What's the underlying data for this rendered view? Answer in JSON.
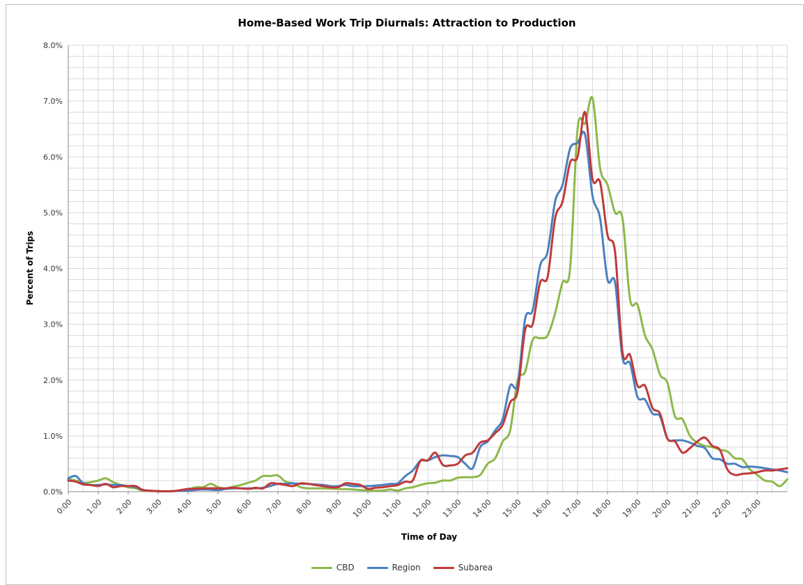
{
  "chart_data": {
    "type": "line",
    "title": "Home-Based Work Trip Diurnals: Attraction to Production",
    "xlabel": "Time of Day",
    "ylabel": "Percent of Trips",
    "ylim": [
      0,
      8
    ],
    "y_ticks": [
      "0.0%",
      "1.0%",
      "2.0%",
      "3.0%",
      "4.0%",
      "5.0%",
      "6.0%",
      "7.0%",
      "8.0%"
    ],
    "x_ticks": [
      "0:00",
      "1:00",
      "2:00",
      "3:00",
      "4:00",
      "5:00",
      "6:00",
      "7:00",
      "8:00",
      "9:00",
      "10:00",
      "11:00",
      "12:00",
      "13:00",
      "14:00",
      "15:00",
      "16:00",
      "17:00",
      "18:00",
      "19:00",
      "20:00",
      "21:00",
      "22:00",
      "23:00"
    ],
    "x_unit": "hours since 0:00",
    "xlim": [
      0,
      24
    ],
    "grid": true,
    "legend_position": "bottom",
    "series": [
      {
        "name": "CBD",
        "color": "#8db84a",
        "points": [
          [
            0,
            0.22
          ],
          [
            0.25,
            0.2
          ],
          [
            0.5,
            0.16
          ],
          [
            0.75,
            0.17
          ],
          [
            1.0,
            0.2
          ],
          [
            1.25,
            0.24
          ],
          [
            1.5,
            0.17
          ],
          [
            1.75,
            0.12
          ],
          [
            2.0,
            0.08
          ],
          [
            2.25,
            0.06
          ],
          [
            2.5,
            0.02
          ],
          [
            3.0,
            0.01
          ],
          [
            3.5,
            0.01
          ],
          [
            4.0,
            0.04
          ],
          [
            4.25,
            0.08
          ],
          [
            4.5,
            0.08
          ],
          [
            4.75,
            0.14
          ],
          [
            5.0,
            0.08
          ],
          [
            5.25,
            0.06
          ],
          [
            5.5,
            0.09
          ],
          [
            5.75,
            0.12
          ],
          [
            6.0,
            0.16
          ],
          [
            6.25,
            0.2
          ],
          [
            6.5,
            0.28
          ],
          [
            6.75,
            0.28
          ],
          [
            7.0,
            0.29
          ],
          [
            7.25,
            0.18
          ],
          [
            7.5,
            0.15
          ],
          [
            7.75,
            0.08
          ],
          [
            8.0,
            0.06
          ],
          [
            8.5,
            0.06
          ],
          [
            9.0,
            0.05
          ],
          [
            9.5,
            0.04
          ],
          [
            10.0,
            0.02
          ],
          [
            10.5,
            0.02
          ],
          [
            10.75,
            0.04
          ],
          [
            11.0,
            0.02
          ],
          [
            11.25,
            0.06
          ],
          [
            11.5,
            0.08
          ],
          [
            11.75,
            0.12
          ],
          [
            12.0,
            0.15
          ],
          [
            12.25,
            0.16
          ],
          [
            12.5,
            0.2
          ],
          [
            12.75,
            0.2
          ],
          [
            13.0,
            0.25
          ],
          [
            13.25,
            0.26
          ],
          [
            13.5,
            0.26
          ],
          [
            13.75,
            0.3
          ],
          [
            14.0,
            0.5
          ],
          [
            14.25,
            0.6
          ],
          [
            14.5,
            0.9
          ],
          [
            14.75,
            1.1
          ],
          [
            15.0,
            2.0
          ],
          [
            15.25,
            2.15
          ],
          [
            15.5,
            2.72
          ],
          [
            15.75,
            2.75
          ],
          [
            16.0,
            2.8
          ],
          [
            16.25,
            3.2
          ],
          [
            16.5,
            3.75
          ],
          [
            16.75,
            4.0
          ],
          [
            17.0,
            6.5
          ],
          [
            17.25,
            6.6
          ],
          [
            17.5,
            7.05
          ],
          [
            17.75,
            5.8
          ],
          [
            18.0,
            5.5
          ],
          [
            18.25,
            5.0
          ],
          [
            18.5,
            4.9
          ],
          [
            18.75,
            3.45
          ],
          [
            19.0,
            3.35
          ],
          [
            19.25,
            2.8
          ],
          [
            19.5,
            2.55
          ],
          [
            19.75,
            2.1
          ],
          [
            20.0,
            1.95
          ],
          [
            20.25,
            1.35
          ],
          [
            20.5,
            1.3
          ],
          [
            20.75,
            1.0
          ],
          [
            21.0,
            0.88
          ],
          [
            21.25,
            0.82
          ],
          [
            21.5,
            0.8
          ],
          [
            21.75,
            0.75
          ],
          [
            22.0,
            0.72
          ],
          [
            22.25,
            0.6
          ],
          [
            22.5,
            0.58
          ],
          [
            22.75,
            0.4
          ],
          [
            23.0,
            0.3
          ],
          [
            23.25,
            0.2
          ],
          [
            23.5,
            0.18
          ],
          [
            23.75,
            0.1
          ],
          [
            24.0,
            0.22
          ]
        ]
      },
      {
        "name": "Region",
        "color": "#4a7fc1",
        "points": [
          [
            0,
            0.24
          ],
          [
            0.25,
            0.28
          ],
          [
            0.5,
            0.15
          ],
          [
            0.75,
            0.12
          ],
          [
            1.0,
            0.12
          ],
          [
            1.25,
            0.13
          ],
          [
            1.5,
            0.12
          ],
          [
            1.75,
            0.12
          ],
          [
            2.0,
            0.1
          ],
          [
            2.25,
            0.08
          ],
          [
            2.5,
            0.03
          ],
          [
            3.0,
            0.01
          ],
          [
            3.5,
            0.01
          ],
          [
            4.0,
            0.02
          ],
          [
            4.5,
            0.04
          ],
          [
            5.0,
            0.03
          ],
          [
            5.25,
            0.05
          ],
          [
            5.5,
            0.06
          ],
          [
            6.0,
            0.06
          ],
          [
            6.5,
            0.07
          ],
          [
            7.0,
            0.14
          ],
          [
            7.25,
            0.14
          ],
          [
            7.5,
            0.15
          ],
          [
            7.75,
            0.14
          ],
          [
            8.0,
            0.14
          ],
          [
            8.25,
            0.13
          ],
          [
            8.5,
            0.12
          ],
          [
            8.75,
            0.1
          ],
          [
            9.0,
            0.1
          ],
          [
            9.25,
            0.12
          ],
          [
            9.5,
            0.1
          ],
          [
            10.0,
            0.1
          ],
          [
            10.25,
            0.11
          ],
          [
            10.5,
            0.12
          ],
          [
            10.75,
            0.14
          ],
          [
            11.0,
            0.15
          ],
          [
            11.25,
            0.28
          ],
          [
            11.5,
            0.38
          ],
          [
            11.75,
            0.55
          ],
          [
            12.0,
            0.56
          ],
          [
            12.25,
            0.62
          ],
          [
            12.5,
            0.65
          ],
          [
            12.75,
            0.64
          ],
          [
            13.0,
            0.62
          ],
          [
            13.25,
            0.5
          ],
          [
            13.5,
            0.42
          ],
          [
            13.75,
            0.8
          ],
          [
            14.0,
            0.9
          ],
          [
            14.25,
            1.1
          ],
          [
            14.5,
            1.3
          ],
          [
            14.75,
            1.9
          ],
          [
            15.0,
            1.92
          ],
          [
            15.25,
            3.1
          ],
          [
            15.5,
            3.25
          ],
          [
            15.75,
            4.05
          ],
          [
            16.0,
            4.3
          ],
          [
            16.25,
            5.2
          ],
          [
            16.5,
            5.5
          ],
          [
            16.75,
            6.15
          ],
          [
            17.0,
            6.25
          ],
          [
            17.25,
            6.4
          ],
          [
            17.5,
            5.3
          ],
          [
            17.75,
            4.9
          ],
          [
            18.0,
            3.8
          ],
          [
            18.25,
            3.75
          ],
          [
            18.5,
            2.4
          ],
          [
            18.75,
            2.3
          ],
          [
            19.0,
            1.7
          ],
          [
            19.25,
            1.65
          ],
          [
            19.5,
            1.4
          ],
          [
            19.75,
            1.35
          ],
          [
            20.0,
            0.95
          ],
          [
            20.25,
            0.92
          ],
          [
            20.5,
            0.92
          ],
          [
            20.75,
            0.88
          ],
          [
            21.0,
            0.82
          ],
          [
            21.25,
            0.78
          ],
          [
            21.5,
            0.6
          ],
          [
            21.75,
            0.58
          ],
          [
            22.0,
            0.5
          ],
          [
            22.25,
            0.5
          ],
          [
            22.5,
            0.44
          ],
          [
            22.75,
            0.45
          ],
          [
            23.0,
            0.44
          ],
          [
            23.25,
            0.42
          ],
          [
            23.5,
            0.4
          ],
          [
            23.75,
            0.38
          ],
          [
            24.0,
            0.35
          ]
        ]
      },
      {
        "name": "Subarea",
        "color": "#c0393a",
        "points": [
          [
            0,
            0.2
          ],
          [
            0.25,
            0.18
          ],
          [
            0.5,
            0.13
          ],
          [
            0.75,
            0.12
          ],
          [
            1.0,
            0.1
          ],
          [
            1.25,
            0.14
          ],
          [
            1.5,
            0.08
          ],
          [
            1.75,
            0.1
          ],
          [
            2.0,
            0.1
          ],
          [
            2.25,
            0.1
          ],
          [
            2.5,
            0.03
          ],
          [
            3.0,
            0.01
          ],
          [
            3.5,
            0.01
          ],
          [
            4.0,
            0.05
          ],
          [
            4.25,
            0.05
          ],
          [
            4.5,
            0.06
          ],
          [
            5.0,
            0.06
          ],
          [
            5.25,
            0.06
          ],
          [
            5.5,
            0.07
          ],
          [
            6.0,
            0.05
          ],
          [
            6.25,
            0.07
          ],
          [
            6.5,
            0.06
          ],
          [
            6.75,
            0.15
          ],
          [
            7.0,
            0.14
          ],
          [
            7.25,
            0.12
          ],
          [
            7.5,
            0.1
          ],
          [
            7.75,
            0.15
          ],
          [
            8.0,
            0.14
          ],
          [
            8.25,
            0.12
          ],
          [
            8.5,
            0.1
          ],
          [
            8.75,
            0.08
          ],
          [
            9.0,
            0.08
          ],
          [
            9.25,
            0.15
          ],
          [
            9.5,
            0.14
          ],
          [
            9.75,
            0.12
          ],
          [
            10.0,
            0.05
          ],
          [
            10.25,
            0.07
          ],
          [
            10.5,
            0.08
          ],
          [
            10.75,
            0.1
          ],
          [
            11.0,
            0.12
          ],
          [
            11.25,
            0.18
          ],
          [
            11.5,
            0.2
          ],
          [
            11.75,
            0.55
          ],
          [
            12.0,
            0.56
          ],
          [
            12.25,
            0.7
          ],
          [
            12.5,
            0.48
          ],
          [
            12.75,
            0.47
          ],
          [
            13.0,
            0.5
          ],
          [
            13.25,
            0.65
          ],
          [
            13.5,
            0.7
          ],
          [
            13.75,
            0.88
          ],
          [
            14.0,
            0.92
          ],
          [
            14.25,
            1.05
          ],
          [
            14.5,
            1.2
          ],
          [
            14.75,
            1.6
          ],
          [
            15.0,
            1.8
          ],
          [
            15.25,
            2.9
          ],
          [
            15.5,
            3.0
          ],
          [
            15.75,
            3.75
          ],
          [
            16.0,
            3.85
          ],
          [
            16.25,
            4.9
          ],
          [
            16.5,
            5.2
          ],
          [
            16.75,
            5.9
          ],
          [
            17.0,
            6.0
          ],
          [
            17.25,
            6.8
          ],
          [
            17.5,
            5.6
          ],
          [
            17.75,
            5.55
          ],
          [
            18.0,
            4.6
          ],
          [
            18.25,
            4.3
          ],
          [
            18.5,
            2.5
          ],
          [
            18.75,
            2.45
          ],
          [
            19.0,
            1.9
          ],
          [
            19.25,
            1.9
          ],
          [
            19.5,
            1.5
          ],
          [
            19.75,
            1.4
          ],
          [
            20.0,
            0.95
          ],
          [
            20.25,
            0.9
          ],
          [
            20.5,
            0.7
          ],
          [
            20.75,
            0.78
          ],
          [
            21.0,
            0.9
          ],
          [
            21.25,
            0.97
          ],
          [
            21.5,
            0.82
          ],
          [
            21.75,
            0.75
          ],
          [
            22.0,
            0.4
          ],
          [
            22.25,
            0.3
          ],
          [
            22.5,
            0.32
          ],
          [
            22.75,
            0.33
          ],
          [
            23.0,
            0.35
          ],
          [
            23.25,
            0.38
          ],
          [
            23.5,
            0.38
          ],
          [
            23.75,
            0.4
          ],
          [
            24.0,
            0.42
          ]
        ]
      }
    ]
  }
}
